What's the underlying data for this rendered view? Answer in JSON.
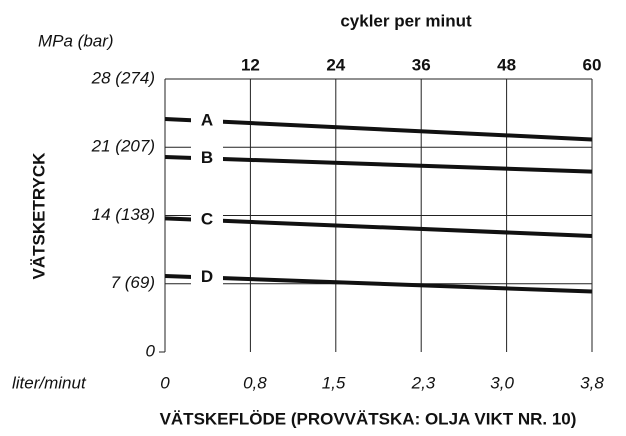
{
  "chart_data": {
    "type": "line",
    "ylabel_unit": "MPa (bar)",
    "ylabel": "VÄTSKETRYCK",
    "xlabel_unit": "liter/minut",
    "xlabel": "VÄTSKEFLÖDE (PROVVÄTSKA: OLJA VIKT NR. 10)",
    "x2label": "cykler per minut",
    "x": [
      0,
      3.8
    ],
    "series": [
      {
        "name": "A",
        "color": "#111111",
        "values": [
          23.9,
          21.8
        ]
      },
      {
        "name": "B",
        "color": "#111111",
        "values": [
          20.0,
          18.5
        ]
      },
      {
        "name": "C",
        "color": "#111111",
        "values": [
          13.7,
          11.9
        ]
      },
      {
        "name": "D",
        "color": "#111111",
        "values": [
          7.8,
          6.2
        ]
      }
    ],
    "xlim": [
      0,
      3.8
    ],
    "xticks": [
      0,
      {
        "value": 0.8,
        "label": "0,8"
      },
      {
        "value": 1.5,
        "label": "1,5"
      },
      {
        "value": 2.3,
        "label": "2,3"
      },
      {
        "value": 3.0,
        "label": "3,0"
      },
      {
        "value": 3.8,
        "label": "3,8"
      }
    ],
    "x2lim": [
      0,
      60
    ],
    "x2ticks": [
      12,
      24,
      36,
      48,
      60
    ],
    "ylim": [
      0,
      28
    ],
    "yticks": [
      0,
      {
        "value": 7,
        "label": "7 (69)"
      },
      {
        "value": 14,
        "label": "14 (138)"
      },
      {
        "value": 21,
        "label": "21 (207)"
      },
      {
        "value": 28,
        "label": "28 (274)"
      }
    ],
    "grid": true
  }
}
